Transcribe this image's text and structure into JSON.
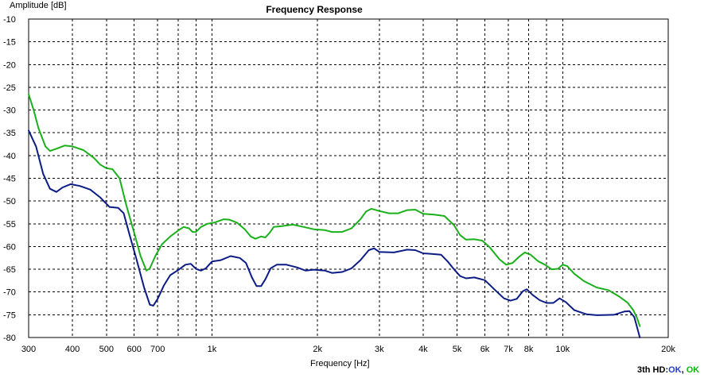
{
  "chart_data": {
    "type": "line",
    "title": "Frequency Response",
    "xlabel": "Frequency [Hz]",
    "ylabel": "Amplitude [dB]",
    "x_scale": "log",
    "xlim": [
      300,
      20000
    ],
    "ylim": [
      -80,
      -10
    ],
    "grid": true,
    "x_ticks": [
      {
        "v": 300,
        "label": "300"
      },
      {
        "v": 400,
        "label": "400"
      },
      {
        "v": 500,
        "label": "500"
      },
      {
        "v": 600,
        "label": "600"
      },
      {
        "v": 700,
        "label": "700"
      },
      {
        "v": 800,
        "label": ""
      },
      {
        "v": 900,
        "label": ""
      },
      {
        "v": 1000,
        "label": "1k"
      },
      {
        "v": 2000,
        "label": "2k"
      },
      {
        "v": 3000,
        "label": "3k"
      },
      {
        "v": 4000,
        "label": "4k"
      },
      {
        "v": 5000,
        "label": "5k"
      },
      {
        "v": 6000,
        "label": "6k"
      },
      {
        "v": 7000,
        "label": "7k"
      },
      {
        "v": 8000,
        "label": "8k"
      },
      {
        "v": 9000,
        "label": ""
      },
      {
        "v": 10000,
        "label": "10k"
      },
      {
        "v": 20000,
        "label": "20k"
      }
    ],
    "y_ticks": [
      -10,
      -15,
      -20,
      -25,
      -30,
      -35,
      -40,
      -45,
      -50,
      -55,
      -60,
      -65,
      -70,
      -75,
      -80
    ],
    "series": [
      {
        "color": "#1ab01a",
        "points": [
          [
            300,
            -26.5
          ],
          [
            310,
            -30
          ],
          [
            320,
            -34
          ],
          [
            335,
            -38
          ],
          [
            345,
            -39
          ],
          [
            360,
            -38.5
          ],
          [
            380,
            -37.8
          ],
          [
            400,
            -38
          ],
          [
            430,
            -38.8
          ],
          [
            460,
            -40.5
          ],
          [
            480,
            -42
          ],
          [
            500,
            -42.8
          ],
          [
            520,
            -43
          ],
          [
            545,
            -45
          ],
          [
            570,
            -51
          ],
          [
            600,
            -57
          ],
          [
            625,
            -62
          ],
          [
            650,
            -65.3
          ],
          [
            665,
            -64.8
          ],
          [
            690,
            -62
          ],
          [
            720,
            -59.5
          ],
          [
            760,
            -57.8
          ],
          [
            800,
            -56.5
          ],
          [
            830,
            -55.7
          ],
          [
            860,
            -56
          ],
          [
            880,
            -56.8
          ],
          [
            900,
            -56.8
          ],
          [
            930,
            -55.7
          ],
          [
            970,
            -55
          ],
          [
            1020,
            -54.7
          ],
          [
            1080,
            -54
          ],
          [
            1120,
            -54.1
          ],
          [
            1180,
            -54.8
          ],
          [
            1240,
            -56.2
          ],
          [
            1290,
            -57.8
          ],
          [
            1330,
            -58.3
          ],
          [
            1380,
            -57.8
          ],
          [
            1420,
            -58
          ],
          [
            1460,
            -57
          ],
          [
            1500,
            -55.7
          ],
          [
            1580,
            -55.5
          ],
          [
            1700,
            -55.2
          ],
          [
            1800,
            -55.6
          ],
          [
            1950,
            -56.2
          ],
          [
            2100,
            -56.4
          ],
          [
            2200,
            -56.8
          ],
          [
            2350,
            -56.8
          ],
          [
            2500,
            -56
          ],
          [
            2650,
            -54
          ],
          [
            2750,
            -52.3
          ],
          [
            2850,
            -51.7
          ],
          [
            3000,
            -52.2
          ],
          [
            3200,
            -52.7
          ],
          [
            3400,
            -52.7
          ],
          [
            3600,
            -52
          ],
          [
            3800,
            -51.9
          ],
          [
            4000,
            -52.8
          ],
          [
            4300,
            -53
          ],
          [
            4600,
            -53.3
          ],
          [
            4900,
            -55.3
          ],
          [
            5100,
            -57.5
          ],
          [
            5300,
            -58.5
          ],
          [
            5600,
            -58.4
          ],
          [
            5900,
            -58.7
          ],
          [
            6200,
            -60.2
          ],
          [
            6600,
            -62.8
          ],
          [
            6900,
            -64
          ],
          [
            7200,
            -63.6
          ],
          [
            7500,
            -62.3
          ],
          [
            7800,
            -61.3
          ],
          [
            8100,
            -61.8
          ],
          [
            8500,
            -63.2
          ],
          [
            8900,
            -64
          ],
          [
            9300,
            -65
          ],
          [
            9700,
            -64.9
          ],
          [
            10000,
            -64
          ],
          [
            10300,
            -64.3
          ],
          [
            10800,
            -66
          ],
          [
            11500,
            -67.6
          ],
          [
            12500,
            -69
          ],
          [
            13500,
            -69.6
          ],
          [
            14500,
            -71
          ],
          [
            15300,
            -72.3
          ],
          [
            15900,
            -74
          ],
          [
            16300,
            -75.7
          ],
          [
            16600,
            -77.5
          ]
        ]
      },
      {
        "color": "#0b1c86",
        "points": [
          [
            300,
            -34.5
          ],
          [
            315,
            -38
          ],
          [
            330,
            -44
          ],
          [
            345,
            -47.3
          ],
          [
            360,
            -48
          ],
          [
            375,
            -47
          ],
          [
            395,
            -46.3
          ],
          [
            420,
            -46.7
          ],
          [
            450,
            -47.5
          ],
          [
            480,
            -49.2
          ],
          [
            510,
            -51.3
          ],
          [
            540,
            -51.5
          ],
          [
            560,
            -52.7
          ],
          [
            580,
            -57
          ],
          [
            610,
            -63
          ],
          [
            640,
            -69
          ],
          [
            665,
            -72.8
          ],
          [
            680,
            -73
          ],
          [
            700,
            -71.5
          ],
          [
            730,
            -68.5
          ],
          [
            760,
            -66.3
          ],
          [
            800,
            -65.2
          ],
          [
            840,
            -64
          ],
          [
            870,
            -63.8
          ],
          [
            900,
            -64.9
          ],
          [
            930,
            -65.3
          ],
          [
            960,
            -64.8
          ],
          [
            1000,
            -63.3
          ],
          [
            1060,
            -63
          ],
          [
            1130,
            -62.1
          ],
          [
            1200,
            -62.5
          ],
          [
            1250,
            -63.6
          ],
          [
            1300,
            -66.8
          ],
          [
            1340,
            -68.7
          ],
          [
            1380,
            -68.7
          ],
          [
            1420,
            -67.2
          ],
          [
            1470,
            -64.8
          ],
          [
            1530,
            -64
          ],
          [
            1630,
            -64
          ],
          [
            1750,
            -64.6
          ],
          [
            1850,
            -65.3
          ],
          [
            1950,
            -65.1
          ],
          [
            2100,
            -65.3
          ],
          [
            2200,
            -65.8
          ],
          [
            2350,
            -65.6
          ],
          [
            2500,
            -64.8
          ],
          [
            2650,
            -63
          ],
          [
            2800,
            -60.8
          ],
          [
            2900,
            -60.4
          ],
          [
            3000,
            -61.2
          ],
          [
            3300,
            -61.3
          ],
          [
            3600,
            -60.7
          ],
          [
            3800,
            -60.8
          ],
          [
            4000,
            -61.5
          ],
          [
            4200,
            -61.6
          ],
          [
            4500,
            -61.8
          ],
          [
            4700,
            -63.3
          ],
          [
            4900,
            -65
          ],
          [
            5100,
            -66.5
          ],
          [
            5300,
            -67
          ],
          [
            5600,
            -66.8
          ],
          [
            6000,
            -67.4
          ],
          [
            6400,
            -69.5
          ],
          [
            6800,
            -71.4
          ],
          [
            7100,
            -71.9
          ],
          [
            7400,
            -71.5
          ],
          [
            7700,
            -69.8
          ],
          [
            7900,
            -69.4
          ],
          [
            8200,
            -70.6
          ],
          [
            8600,
            -71.8
          ],
          [
            9000,
            -72.4
          ],
          [
            9400,
            -72.4
          ],
          [
            9800,
            -71.4
          ],
          [
            10200,
            -72.2
          ],
          [
            10800,
            -74
          ],
          [
            11700,
            -74.9
          ],
          [
            12500,
            -75.1
          ],
          [
            14000,
            -75
          ],
          [
            15000,
            -74.3
          ],
          [
            15500,
            -74.2
          ],
          [
            16000,
            -75.5
          ],
          [
            16400,
            -78.5
          ],
          [
            16600,
            -80
          ]
        ]
      }
    ]
  },
  "status": {
    "prefix": "3th HD:",
    "ok1": "OK",
    "sep": ", ",
    "ok2": "OK"
  }
}
